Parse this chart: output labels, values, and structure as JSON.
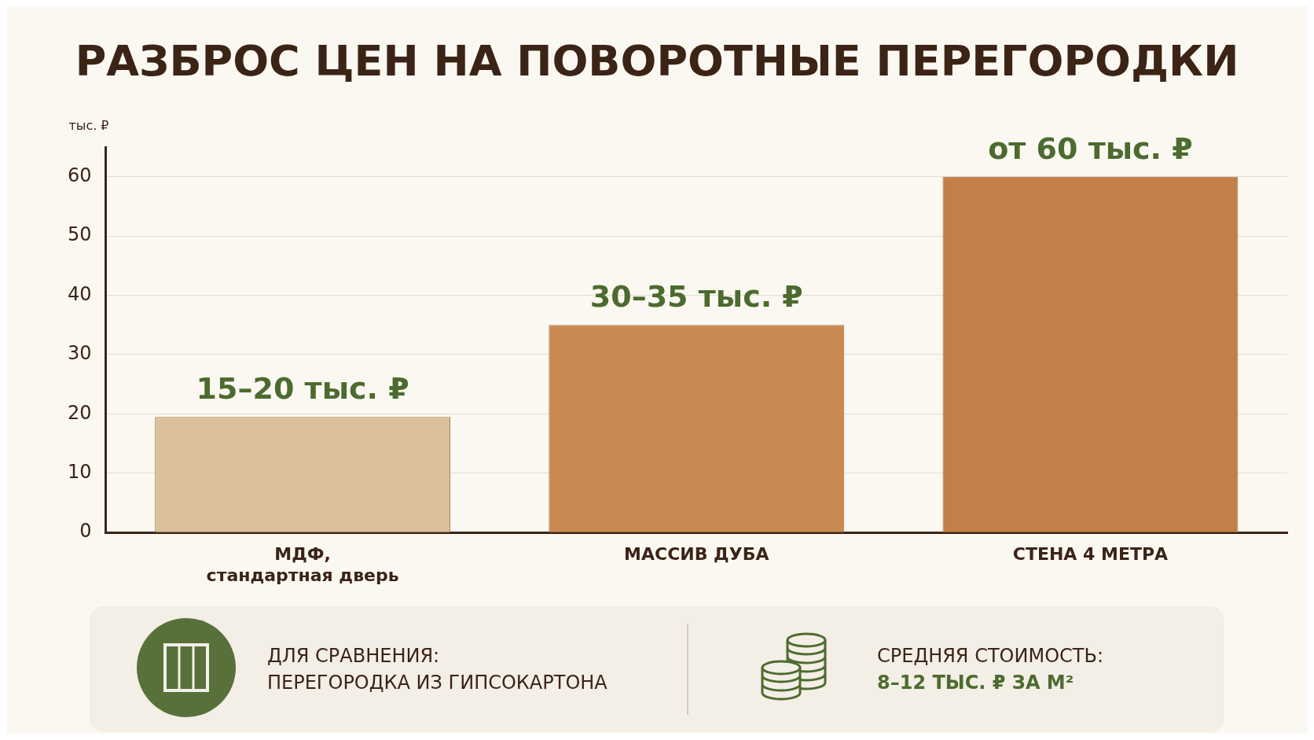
{
  "chart_data": [
    {
      "type": "bar",
      "title": "РАЗБРОС ЦЕН НА ПОВОРОТНЫЕ ПЕРЕГОРОДКИ",
      "ylabel": "тыс. ₽",
      "categories": [
        "МДФ,\nстандартная дверь",
        "МАССИВ ДУБА",
        "СТЕНА 4 МЕТРА"
      ],
      "values": [
        19.5,
        35,
        60
      ],
      "colors": [
        "#dcc09c",
        "#c98a52",
        "#c27f47"
      ],
      "value_labels": [
        "15–20 тыс. ₽",
        "30–35 тыс. ₽",
        "от 60 тыс. ₽"
      ],
      "ylim": [
        0,
        65
      ],
      "yticks": [
        0,
        10,
        20,
        30,
        40,
        50,
        60
      ],
      "grid": "y",
      "legend": false
    },
    {
      "type": "other",
      "annotations": [
        "ДЛЯ СРАВНЕНИЯ:",
        "ПЕРЕГОРОДКА ИЗ ГИПСОКАРТОНА",
        "СРЕДНЯЯ СТОИМОСТЬ:",
        "8–12 ТЫС. ₽ ЗА М²"
      ]
    }
  ]
}
